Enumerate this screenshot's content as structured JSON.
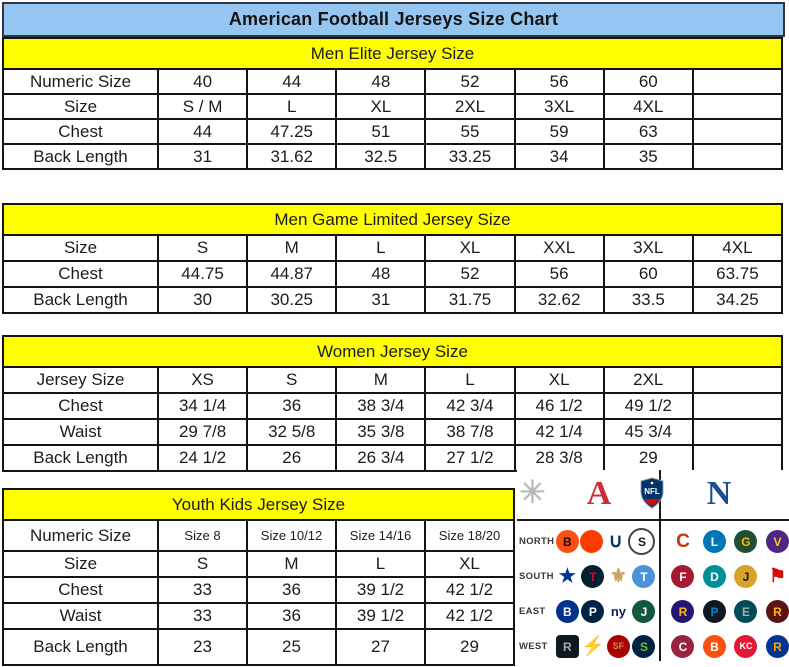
{
  "page_title": "American Football Jerseys Size Chart",
  "colors": {
    "title_bg": "#95c6f1",
    "section_bg": "#ffff00",
    "border": "#141414",
    "afc_red": "#cf2b36",
    "nfc_blue": "#1a4f8f"
  },
  "tables": [
    {
      "id": "men-elite",
      "title": "Men Elite Jersey Size",
      "rows": [
        [
          "Numeric Size",
          "40",
          "44",
          "48",
          "52",
          "56",
          "60",
          ""
        ],
        [
          "Size",
          "S / M",
          "L",
          "XL",
          "2XL",
          "3XL",
          "4XL",
          ""
        ],
        [
          "Chest",
          "44",
          "47.25",
          "51",
          "55",
          "59",
          "63",
          ""
        ],
        [
          "Back Length",
          "31",
          "31.62",
          "32.5",
          "33.25",
          "34",
          "35",
          ""
        ]
      ]
    },
    {
      "id": "men-game-limited",
      "title": "Men Game Limited Jersey Size",
      "rows": [
        [
          "Size",
          "S",
          "M",
          "L",
          "XL",
          "XXL",
          "3XL",
          "4XL"
        ],
        [
          "Chest",
          "44.75",
          "44.87",
          "48",
          "52",
          "56",
          "60",
          "63.75"
        ],
        [
          "Back Length",
          "30",
          "30.25",
          "31",
          "31.75",
          "32.62",
          "33.5",
          "34.25"
        ]
      ]
    },
    {
      "id": "women",
      "title": "Women Jersey Size",
      "rows": [
        [
          "Jersey Size",
          "XS",
          "S",
          "M",
          "L",
          "XL",
          "2XL",
          ""
        ],
        [
          "Chest",
          "34 1/4",
          "36",
          "38 3/4",
          "42 3/4",
          "46 1/2",
          "49 1/2",
          ""
        ],
        [
          "Waist",
          "29 7/8",
          "32 5/8",
          "35 3/8",
          "38 7/8",
          "42 1/4",
          "45 3/4",
          ""
        ],
        [
          "Back Length",
          "24 1/2",
          "26",
          "26 3/4",
          "27 1/2",
          "28 3/8",
          "29",
          ""
        ]
      ]
    },
    {
      "id": "youth",
      "title": "Youth Kids Jersey Size",
      "rows": [
        [
          "Numeric Size",
          "Size 8",
          "Size 10/12",
          "Size 14/16",
          "Size 18/20"
        ],
        [
          "Size",
          "S",
          "M",
          "L",
          "XL"
        ],
        [
          "Chest",
          "33",
          "36",
          "39 1/2",
          "42 1/2"
        ],
        [
          "Waist",
          "33",
          "36",
          "39 1/2",
          "42 1/2"
        ],
        [
          "Back Length",
          "23",
          "25",
          "27",
          "29"
        ]
      ]
    }
  ],
  "nfl_panel": {
    "afc_letter": "A",
    "nfc_letter": "N",
    "nfl_label": "NFL",
    "starburst_glyph": "✳",
    "divisions": [
      {
        "name": "NORTH",
        "afc": [
          {
            "name": "bengals",
            "glyph": "B",
            "bg": "#fb4f14",
            "fg": "#101010",
            "shape": "circle"
          },
          {
            "name": "browns",
            "glyph": "",
            "bg": "#ff3c00",
            "fg": "#ffffff",
            "shape": "circle"
          },
          {
            "name": "colts",
            "glyph": "∪",
            "fg": "#013369",
            "shape": "glyph"
          },
          {
            "name": "steelers",
            "glyph": "S",
            "bg": "#ffffff",
            "fg": "#101820",
            "shape": "circle",
            "border": "2px solid #444444"
          }
        ],
        "nfc": [
          {
            "name": "bears",
            "glyph": "C",
            "fg": "#c83803",
            "shape": "glyph"
          },
          {
            "name": "lions",
            "glyph": "L",
            "bg": "#0076b6",
            "fg": "#ffffff",
            "shape": "circle"
          },
          {
            "name": "packers",
            "glyph": "G",
            "bg": "#204e32",
            "fg": "#ffb612",
            "shape": "circle"
          },
          {
            "name": "vikings",
            "glyph": "V",
            "bg": "#4f2683",
            "fg": "#ffc62f",
            "shape": "circle"
          }
        ]
      },
      {
        "name": "SOUTH",
        "afc": [
          {
            "name": "cowboys",
            "glyph": "★",
            "fg": "#003594",
            "shape": "glyph"
          },
          {
            "name": "texans",
            "glyph": "T",
            "bg": "#03202f",
            "fg": "#e4002b",
            "shape": "circle"
          },
          {
            "name": "saints",
            "glyph": "⚜",
            "fg": "#c9a45c",
            "shape": "glyph"
          },
          {
            "name": "titans",
            "glyph": "T",
            "bg": "#4b92db",
            "fg": "#ffffff",
            "shape": "circle"
          }
        ],
        "nfc": [
          {
            "name": "falcons",
            "glyph": "F",
            "bg": "#a71930",
            "fg": "#ffffff",
            "shape": "circle"
          },
          {
            "name": "dolphins",
            "glyph": "D",
            "bg": "#008e97",
            "fg": "#ffffff",
            "shape": "circle"
          },
          {
            "name": "jaguars",
            "glyph": "J",
            "bg": "#d7a22a",
            "fg": "#101820",
            "shape": "circle"
          },
          {
            "name": "buccaneers",
            "glyph": "⚑",
            "fg": "#d50a0a",
            "shape": "glyph"
          }
        ]
      },
      {
        "name": "EAST",
        "afc": [
          {
            "name": "bills",
            "glyph": "B",
            "bg": "#00338d",
            "fg": "#ffffff",
            "shape": "circle"
          },
          {
            "name": "patriots",
            "glyph": "P",
            "bg": "#002244",
            "fg": "#ffffff",
            "shape": "circle"
          },
          {
            "name": "giants",
            "glyph": "ny",
            "fg": "#0b2265",
            "shape": "glyph"
          },
          {
            "name": "jets",
            "glyph": "J",
            "bg": "#125740",
            "fg": "#ffffff",
            "shape": "circle"
          }
        ],
        "nfc": [
          {
            "name": "ravens",
            "glyph": "R",
            "bg": "#241773",
            "fg": "#ffb612",
            "shape": "circle"
          },
          {
            "name": "panthers",
            "glyph": "P",
            "bg": "#101820",
            "fg": "#0085ca",
            "shape": "circle"
          },
          {
            "name": "eagles",
            "glyph": "E",
            "bg": "#004c54",
            "fg": "#a5acaf",
            "shape": "circle"
          },
          {
            "name": "redskins",
            "glyph": "R",
            "bg": "#5a1414",
            "fg": "#ffb612",
            "shape": "circle"
          }
        ]
      },
      {
        "name": "WEST",
        "afc": [
          {
            "name": "raiders",
            "glyph": "R",
            "bg": "#101820",
            "fg": "#a5acaf",
            "shape": "square"
          },
          {
            "name": "chargers",
            "glyph": "⚡",
            "fg": "#0080c6",
            "shape": "glyph"
          },
          {
            "name": "49ers",
            "glyph": "SF",
            "bg": "#aa0000",
            "fg": "#b3995d",
            "shape": "circle"
          },
          {
            "name": "seahawks",
            "glyph": "S",
            "bg": "#002244",
            "fg": "#69be28",
            "shape": "circle"
          }
        ],
        "nfc": [
          {
            "name": "cardinals",
            "glyph": "C",
            "bg": "#97233f",
            "fg": "#ffffff",
            "shape": "circle"
          },
          {
            "name": "broncos",
            "glyph": "B",
            "bg": "#fb4f14",
            "fg": "#ffffff",
            "shape": "circle"
          },
          {
            "name": "chiefs",
            "glyph": "KC",
            "bg": "#e31837",
            "fg": "#ffffff",
            "shape": "circle"
          },
          {
            "name": "rams",
            "glyph": "R",
            "bg": "#003594",
            "fg": "#ffa300",
            "shape": "circle"
          }
        ]
      }
    ]
  }
}
